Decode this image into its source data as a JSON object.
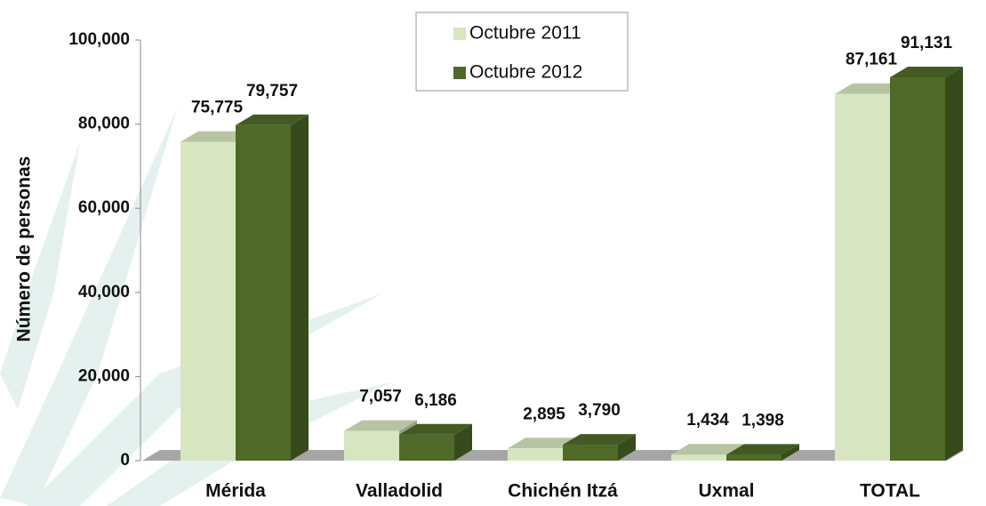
{
  "chart_data": {
    "type": "bar3d",
    "y_axis_label": "Número de personas",
    "categories": [
      "Mérida",
      "Valladolid",
      "Chichén Itzá",
      "Uxmal",
      "TOTAL"
    ],
    "series": [
      {
        "name": "Octubre 2011",
        "color": "#d7e6c0",
        "values": [
          75775,
          7057,
          2895,
          1434,
          87161
        ],
        "value_labels": [
          "75,775",
          "7,057",
          "2,895",
          "1,434",
          "87,161"
        ]
      },
      {
        "name": "Octubre 2012",
        "color": "#4f6a28",
        "values": [
          79757,
          6186,
          3790,
          1398,
          91131
        ],
        "value_labels": [
          "79,757",
          "6,186",
          "3,790",
          "1,398",
          "91,131"
        ]
      }
    ],
    "ylim": [
      0,
      100000
    ],
    "yticks": [
      0,
      {
        "value": 20000,
        "label": "20,000"
      },
      {
        "value": 40000,
        "label": "40,000"
      },
      {
        "value": 60000,
        "label": "60,000"
      },
      {
        "value": 80000,
        "label": "80,000"
      },
      {
        "value": 100000,
        "label": "100,000"
      }
    ],
    "legend": "top-center"
  }
}
